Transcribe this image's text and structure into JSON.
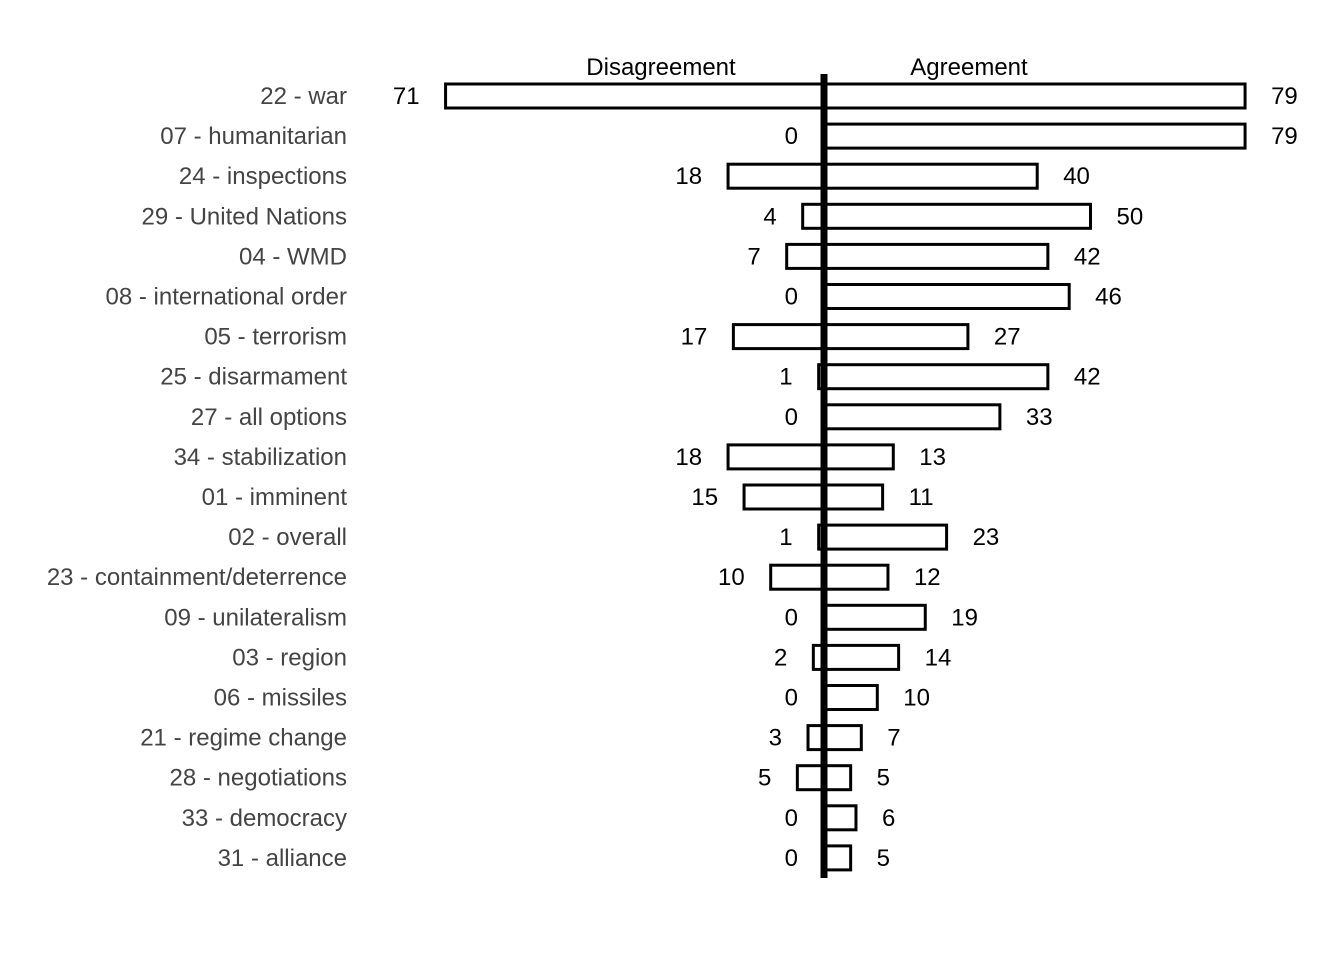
{
  "chart_data": {
    "type": "bar",
    "orientation": "horizontal-diverging",
    "categories": [
      "22 - war",
      "07 - humanitarian",
      "24 - inspections",
      "29 - United Nations",
      "04 - WMD",
      "08 - international order",
      "05 - terrorism",
      "25 - disarmament",
      "27 - all options",
      "34 - stabilization",
      "01 - imminent",
      "02 - overall",
      "23 - containment/deterrence",
      "09 - unilateralism",
      "03 - region",
      "06 - missiles",
      "21 - regime change",
      "28 - negotiations",
      "33 - democracy",
      "31 - alliance"
    ],
    "series": [
      {
        "name": "Disagreement",
        "values": [
          71,
          0,
          18,
          4,
          7,
          0,
          17,
          1,
          0,
          18,
          15,
          1,
          10,
          0,
          2,
          0,
          3,
          5,
          0,
          0
        ]
      },
      {
        "name": "Agreement",
        "values": [
          79,
          79,
          40,
          50,
          42,
          46,
          27,
          42,
          33,
          13,
          11,
          23,
          12,
          19,
          14,
          10,
          7,
          5,
          6,
          5
        ]
      }
    ],
    "title": "",
    "xlabel": "",
    "ylabel": "",
    "grid": false,
    "legend": "none",
    "bar_fill": "#ffffff",
    "bar_stroke": "#000000",
    "axis_color": "#000000",
    "category_label_color": "#444444"
  }
}
